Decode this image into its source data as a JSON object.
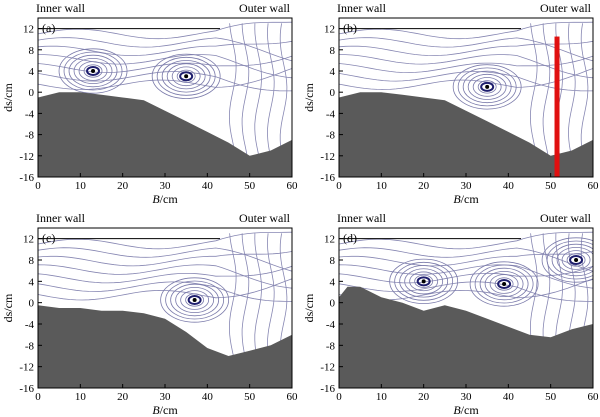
{
  "chart_data": [
    {
      "type": "streamline",
      "panel_label": "(a)",
      "wall_labels": [
        "Inner wall",
        "Outer wall"
      ],
      "xlabel_italic": "B",
      "xlabel_unit": "/cm",
      "ylabel": "ds/cm",
      "xlim": [
        0,
        60
      ],
      "ylim": [
        -16,
        14
      ],
      "xticks": [
        0,
        10,
        20,
        30,
        40,
        50,
        60
      ],
      "yticks": [
        -16,
        -12,
        -8,
        -4,
        0,
        4,
        8,
        12
      ],
      "bed_profile": [
        [
          0,
          -1
        ],
        [
          5,
          0
        ],
        [
          10,
          0
        ],
        [
          15,
          -0.5
        ],
        [
          20,
          -1
        ],
        [
          25,
          -1.5
        ],
        [
          30,
          -3.5
        ],
        [
          35,
          -5.5
        ],
        [
          40,
          -7.5
        ],
        [
          45,
          -9.5
        ],
        [
          50,
          -12
        ],
        [
          55,
          -11
        ],
        [
          60,
          -9
        ]
      ],
      "vortices": [
        [
          13,
          4
        ],
        [
          35,
          3
        ]
      ],
      "partition": null
    },
    {
      "type": "streamline",
      "panel_label": "(b)",
      "wall_labels": [
        "Inner wall",
        "Outer wall"
      ],
      "xlabel_italic": "B",
      "xlabel_unit": "/cm",
      "ylabel": "ds/cm",
      "xlim": [
        0,
        60
      ],
      "ylim": [
        -16,
        14
      ],
      "xticks": [
        0,
        10,
        20,
        30,
        40,
        50,
        60
      ],
      "yticks": [
        -16,
        -12,
        -8,
        -4,
        0,
        4,
        8,
        12
      ],
      "bed_profile": [
        [
          0,
          -1
        ],
        [
          5,
          0
        ],
        [
          10,
          0
        ],
        [
          15,
          -0.5
        ],
        [
          20,
          -1
        ],
        [
          25,
          -1.5
        ],
        [
          30,
          -3.5
        ],
        [
          35,
          -5.5
        ],
        [
          40,
          -7.5
        ],
        [
          45,
          -9.5
        ],
        [
          50,
          -12
        ],
        [
          55,
          -11
        ],
        [
          60,
          -9
        ]
      ],
      "vortices": [
        [
          35,
          1
        ]
      ],
      "partition": {
        "x": 51.5,
        "y0": -16,
        "y1": 10.5,
        "color": "#e01010"
      }
    },
    {
      "type": "streamline",
      "panel_label": "(c)",
      "wall_labels": [
        "Inner wall",
        "Outer wall"
      ],
      "xlabel_italic": "B",
      "xlabel_unit": "/cm",
      "ylabel": "ds/cm",
      "xlim": [
        0,
        60
      ],
      "ylim": [
        -16,
        14
      ],
      "xticks": [
        0,
        10,
        20,
        30,
        40,
        50,
        60
      ],
      "yticks": [
        -16,
        -12,
        -8,
        -4,
        0,
        4,
        8,
        12
      ],
      "bed_profile": [
        [
          0,
          -0.5
        ],
        [
          5,
          -1
        ],
        [
          10,
          -1
        ],
        [
          15,
          -1.5
        ],
        [
          20,
          -1.5
        ],
        [
          25,
          -2
        ],
        [
          30,
          -3
        ],
        [
          35,
          -5.5
        ],
        [
          40,
          -8.5
        ],
        [
          45,
          -10
        ],
        [
          50,
          -9
        ],
        [
          55,
          -8
        ],
        [
          60,
          -6
        ]
      ],
      "vortices": [
        [
          37,
          0.5
        ]
      ],
      "partition": null
    },
    {
      "type": "streamline",
      "panel_label": "(d)",
      "wall_labels": [
        "Inner wall",
        "Outer wall"
      ],
      "xlabel_italic": "B",
      "xlabel_unit": "/cm",
      "ylabel": "ds/cm",
      "xlim": [
        0,
        60
      ],
      "ylim": [
        -16,
        14
      ],
      "xticks": [
        0,
        10,
        20,
        30,
        40,
        50,
        60
      ],
      "yticks": [
        -16,
        -12,
        -8,
        -4,
        0,
        4,
        8,
        12
      ],
      "bed_profile": [
        [
          0,
          1
        ],
        [
          2,
          3
        ],
        [
          5,
          3
        ],
        [
          10,
          1
        ],
        [
          15,
          0
        ],
        [
          20,
          -1.5
        ],
        [
          25,
          -0.5
        ],
        [
          30,
          -1.5
        ],
        [
          35,
          -3
        ],
        [
          40,
          -4.5
        ],
        [
          45,
          -6
        ],
        [
          50,
          -6.5
        ],
        [
          55,
          -5
        ],
        [
          60,
          -4
        ]
      ],
      "vortices": [
        [
          20,
          4
        ],
        [
          39,
          3.5
        ],
        [
          56,
          8
        ]
      ],
      "partition": null
    }
  ],
  "colors": {
    "bed": "#5a5a5a",
    "streamline": "#7a7aaa",
    "vortex_core": "#1e1e6e",
    "axis": "#000000"
  }
}
